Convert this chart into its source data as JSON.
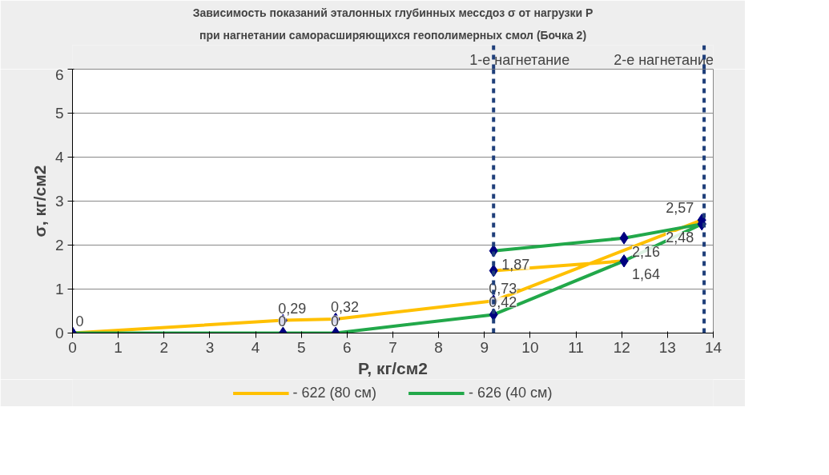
{
  "chart_data": {
    "type": "line",
    "title": "Зависимость показаний эталонных глубинных мессдоз σ от нагрузки P",
    "subtitle": "при нагнетании саморасширяющихся геополимерных смол (Бочка 2)",
    "xlabel": "P, кг/см2",
    "ylabel": "σ, кг/см2",
    "xlim": [
      0,
      14
    ],
    "xticks": [
      0,
      1,
      2,
      3,
      4,
      5,
      6,
      7,
      8,
      9,
      10,
      11,
      12,
      13,
      14
    ],
    "ylim": [
      0,
      6
    ],
    "yticks": [
      0,
      1,
      2,
      3,
      4,
      5,
      6
    ],
    "grid": "y",
    "legend": "bottom",
    "marker": "diamond",
    "series": [
      {
        "name": "- 622 (80 см)",
        "color": "#ffc000",
        "x": [
          0,
          4.6,
          5.75,
          9.2,
          13.75,
          null,
          9.2,
          12.05
        ],
        "values": [
          0,
          0.29,
          0.32,
          0.73,
          2.57,
          null,
          1.42,
          1.64
        ],
        "value_labels": [
          "0",
          "0,29",
          "0,32",
          "0,73",
          "2,57",
          null,
          null,
          null
        ]
      },
      {
        "name": "- 626 (40 см)",
        "color": "#22a84a",
        "x": [
          0,
          4.6,
          5.75,
          9.2,
          12.05,
          13.75,
          null,
          9.2,
          12.05,
          13.75
        ],
        "values": [
          0,
          0,
          0,
          0.42,
          1.64,
          2.48,
          null,
          1.87,
          2.16,
          2.48
        ],
        "value_labels": [
          null,
          "0",
          "0",
          "0,42",
          "1,64",
          "2,48",
          null,
          "1,87",
          "2,16",
          null
        ]
      }
    ],
    "ref_lines": [
      {
        "axis": "x",
        "value": 9.2,
        "label": "1-е нагнетание",
        "color": "#1f3f7a",
        "line_style": "dashed"
      },
      {
        "axis": "x",
        "value": 13.8,
        "label": "2-е нагнетание",
        "color": "#1f3f7a",
        "line_style": "dashed"
      }
    ]
  }
}
